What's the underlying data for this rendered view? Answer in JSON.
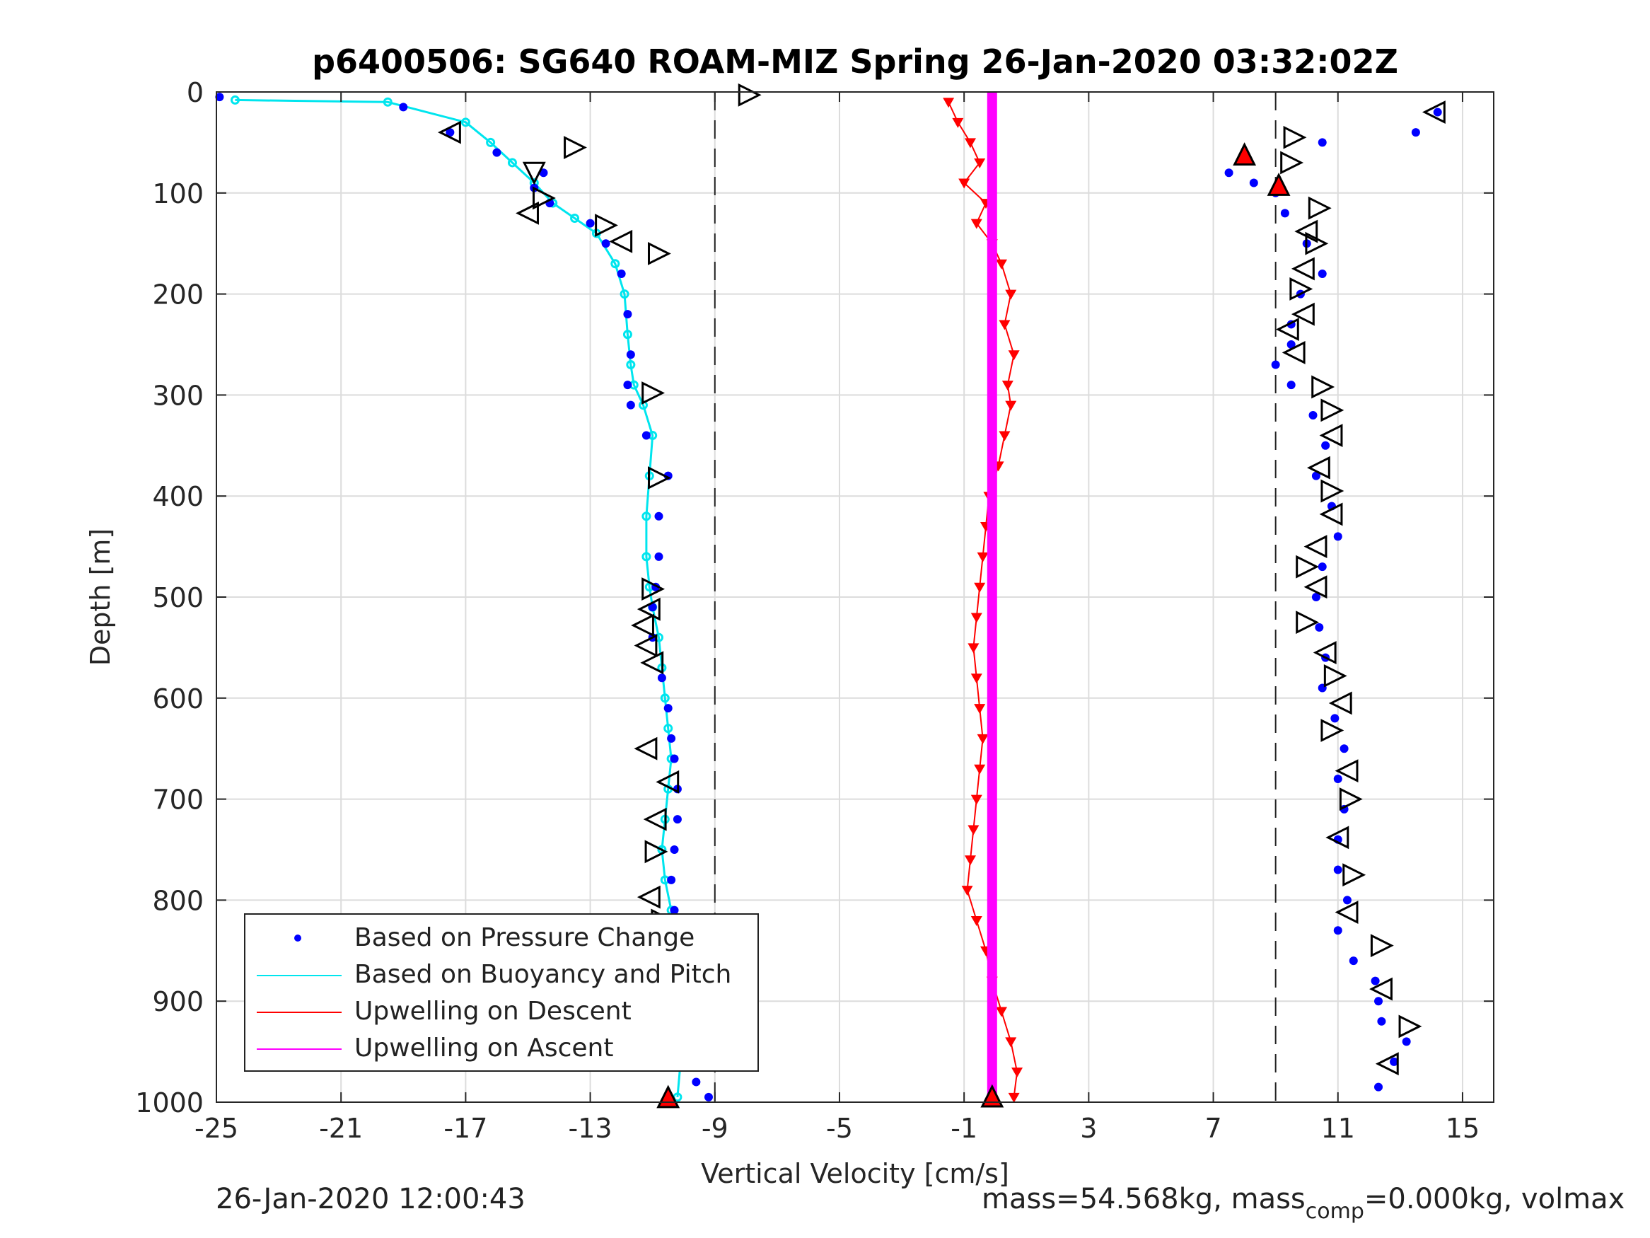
{
  "chart_data": {
    "type": "scatter",
    "title": "p6400506: SG640 ROAM-MIZ Spring 26-Jan-2020 03:32:02Z",
    "xlabel": "Vertical Velocity [cm/s]",
    "ylabel": "Depth [m]",
    "xlim": [
      -25,
      16
    ],
    "ylim": [
      0,
      1000
    ],
    "y_reversed": true,
    "grid": true,
    "xticks": [
      -25,
      -21,
      -17,
      -13,
      -9,
      -5,
      -1,
      3,
      7,
      11,
      15
    ],
    "yticks": [
      0,
      100,
      200,
      300,
      400,
      500,
      600,
      700,
      800,
      900,
      1000
    ],
    "reference_lines_x": [
      -9,
      9
    ],
    "legend_placement": "bottom-left",
    "series": [
      {
        "name": "Based on Pressure Change",
        "style": "dots",
        "color": "#0000ff",
        "descent_x": [
          -24.9,
          -19,
          -17.5,
          -16,
          -14.5,
          -14.8,
          -14.3,
          -13,
          -12.5,
          -12,
          -11.8,
          -11.7,
          -11.8,
          -11.7,
          -11.2,
          -10.5,
          -10.8,
          -10.8,
          -10.9,
          -11.0,
          -11.0,
          -10.7,
          -10.5,
          -10.4,
          -10.3,
          -10.2,
          -10.2,
          -10.3,
          -10.4,
          -10.3,
          -10.5,
          -10.4,
          -10.3,
          -10.2,
          -10.0,
          -9.6,
          -9.2
        ],
        "descent_y": [
          5,
          15,
          40,
          60,
          80,
          95,
          110,
          130,
          150,
          180,
          220,
          260,
          290,
          310,
          340,
          380,
          420,
          460,
          490,
          510,
          540,
          580,
          610,
          640,
          660,
          690,
          720,
          750,
          780,
          810,
          840,
          870,
          900,
          930,
          960,
          980,
          995
        ],
        "ascent_x": [
          14.2,
          13.5,
          10.5,
          8.0,
          7.5,
          8.3,
          9.0,
          9.3,
          10.0,
          10.5,
          9.8,
          9.5,
          9.5,
          9.0,
          9.5,
          10.2,
          10.6,
          10.3,
          10.8,
          11.0,
          10.5,
          10.3,
          10.4,
          10.6,
          10.5,
          10.9,
          11.2,
          11.0,
          11.2,
          11.0,
          11.0,
          11.3,
          11.0,
          11.5,
          12.2,
          12.3,
          12.4,
          13.2,
          12.8,
          12.3
        ],
        "ascent_y": [
          20,
          40,
          50,
          60,
          80,
          90,
          100,
          120,
          150,
          180,
          200,
          230,
          250,
          270,
          290,
          320,
          350,
          380,
          410,
          440,
          470,
          500,
          530,
          560,
          590,
          620,
          650,
          680,
          710,
          740,
          770,
          800,
          830,
          860,
          880,
          900,
          920,
          940,
          960,
          985
        ]
      },
      {
        "name": "Based on Buoyancy and Pitch",
        "style": "line-dots",
        "color": "#00e5ee",
        "x": [
          -24.4,
          -19.5,
          -17.0,
          -16.2,
          -15.5,
          -14.8,
          -14.2,
          -13.5,
          -12.8,
          -12.2,
          -11.9,
          -11.8,
          -11.7,
          -11.6,
          -11.3,
          -11.0,
          -11.1,
          -11.2,
          -11.2,
          -11.1,
          -11.0,
          -10.8,
          -10.7,
          -10.6,
          -10.5,
          -10.4,
          -10.5,
          -10.6,
          -10.7,
          -10.6,
          -10.4,
          -10.4,
          -10.3,
          -10.2,
          -10.1,
          -10.1,
          -10.2
        ],
        "y": [
          8,
          10,
          30,
          50,
          70,
          90,
          110,
          125,
          140,
          170,
          200,
          240,
          270,
          290,
          310,
          340,
          380,
          420,
          460,
          490,
          510,
          540,
          570,
          600,
          630,
          660,
          690,
          720,
          750,
          780,
          810,
          840,
          870,
          900,
          930,
          960,
          995
        ]
      },
      {
        "name": "Upwelling on Descent",
        "style": "line-triangles",
        "color": "#ff0000",
        "x": [
          -1.5,
          -1.2,
          -0.8,
          -0.5,
          -1.0,
          -0.3,
          -0.6,
          -0.1,
          0.2,
          0.5,
          0.3,
          0.6,
          0.4,
          0.5,
          0.3,
          0.1,
          -0.2,
          -0.3,
          -0.4,
          -0.5,
          -0.6,
          -0.7,
          -0.6,
          -0.5,
          -0.4,
          -0.5,
          -0.6,
          -0.7,
          -0.8,
          -0.9,
          -0.6,
          -0.3,
          -0.1,
          0.2,
          0.5,
          0.7,
          0.6
        ],
        "y": [
          10,
          30,
          50,
          70,
          90,
          110,
          130,
          150,
          170,
          200,
          230,
          260,
          290,
          310,
          340,
          370,
          400,
          430,
          460,
          490,
          520,
          550,
          580,
          610,
          640,
          670,
          700,
          730,
          760,
          790,
          820,
          850,
          880,
          910,
          940,
          970,
          995
        ]
      },
      {
        "name": "Upwelling on Ascent",
        "style": "line",
        "color": "#ff00ff",
        "x": [
          -0.1,
          -0.1,
          -0.1,
          -0.1,
          -0.1,
          -0.1,
          -0.1,
          -0.1,
          -0.1,
          -0.1,
          -0.1
        ],
        "y": [
          0,
          100,
          200,
          300,
          400,
          500,
          600,
          700,
          800,
          900,
          1000
        ]
      }
    ],
    "triangle_markers_descent": {
      "x": [
        -17.5,
        -13.5,
        -14.8,
        -14.5,
        -15.0,
        -12.5,
        -12.0,
        -10.8,
        -11.0,
        -10.8,
        -11.0,
        -11.1,
        -11.3,
        -11.2,
        -11.0,
        -11.2,
        -10.5,
        -10.9,
        -10.9,
        -11.1,
        -10.7,
        -10.5
      ],
      "y": [
        40,
        55,
        80,
        105,
        120,
        132,
        148,
        160,
        298,
        382,
        492,
        512,
        528,
        548,
        565,
        650,
        683,
        720,
        752,
        797,
        820,
        995
      ],
      "dir": [
        "left",
        "right",
        "down",
        "right",
        "left",
        "right",
        "left",
        "right",
        "right",
        "right",
        "right",
        "left",
        "left",
        "left",
        "left",
        "left",
        "left",
        "left",
        "right",
        "left",
        "right",
        "up"
      ]
    },
    "triangle_markers_ascent": {
      "x": [
        -7.9,
        14.1,
        9.6,
        9.5,
        8.0,
        9.1,
        10.4,
        10.0,
        10.3,
        9.9,
        9.8,
        9.9,
        9.4,
        9.6,
        10.5,
        10.8,
        10.8,
        10.4,
        10.8,
        10.8,
        10.3,
        10.0,
        10.3,
        10.0,
        10.6,
        10.9,
        11.1,
        10.8,
        11.3,
        11.4,
        11.0,
        11.5,
        11.3,
        12.4,
        12.4,
        13.3,
        12.6
      ],
      "y": [
        3,
        20,
        45,
        70,
        62,
        92,
        115,
        138,
        150,
        175,
        195,
        220,
        235,
        258,
        292,
        315,
        340,
        372,
        395,
        418,
        450,
        470,
        490,
        525,
        555,
        578,
        605,
        632,
        672,
        700,
        738,
        775,
        812,
        845,
        888,
        925,
        962
      ],
      "dir": [
        "right",
        "left",
        "right",
        "right",
        "up",
        "up",
        "right",
        "left",
        "right",
        "left",
        "right",
        "left",
        "left",
        "left",
        "right",
        "right",
        "left",
        "left",
        "right",
        "left",
        "left",
        "right",
        "left",
        "right",
        "left",
        "right",
        "left",
        "right",
        "left",
        "right",
        "left",
        "right",
        "left",
        "right",
        "left",
        "right",
        "left"
      ]
    },
    "legend": [
      "Based on Pressure Change",
      "Based on Buoyancy and Pitch",
      "Upwelling on Descent",
      "Upwelling on Ascent"
    ]
  },
  "footer": {
    "timestamp": "26-Jan-2020 12:00:43",
    "mass_text_1": "mass=54.568kg, mass",
    "mass_sub": "comp",
    "mass_text_2": "=0.000kg, volmax"
  },
  "colors": {
    "pressure": "#0000ff",
    "buoyancy": "#00e5ee",
    "descent": "#ff0000",
    "ascent": "#ff00ff"
  }
}
